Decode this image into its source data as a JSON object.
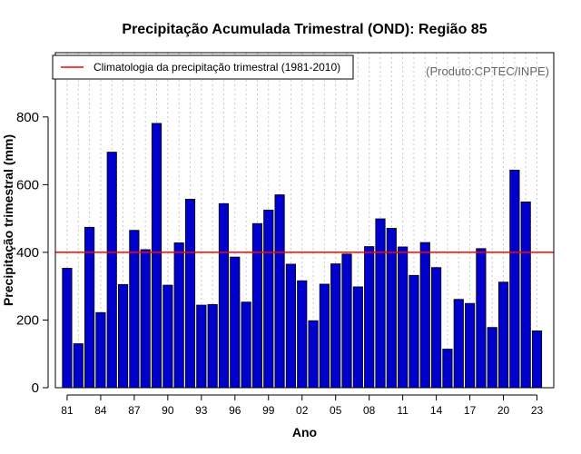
{
  "chart_data": {
    "type": "bar",
    "title": "Precipitação Acumulada Trimestral (OND): Região 85",
    "xlabel": "Ano",
    "ylabel": "Precipitação trimestral (mm)",
    "ylim": [
      0,
      990
    ],
    "yticks": [
      0,
      200,
      400,
      600,
      800
    ],
    "xtick_labels": [
      "81",
      "84",
      "87",
      "90",
      "93",
      "96",
      "99",
      "02",
      "05",
      "08",
      "11",
      "14",
      "17",
      "20",
      "23"
    ],
    "grid": "vertical dotted",
    "years": [
      1981,
      1982,
      1983,
      1984,
      1985,
      1986,
      1987,
      1988,
      1989,
      1990,
      1991,
      1992,
      1993,
      1994,
      1995,
      1996,
      1997,
      1998,
      1999,
      2000,
      2001,
      2002,
      2003,
      2004,
      2005,
      2006,
      2007,
      2008,
      2009,
      2010,
      2011,
      2012,
      2013,
      2014,
      2015,
      2016,
      2017,
      2018,
      2019,
      2020,
      2021,
      2022,
      2023
    ],
    "values": [
      353,
      130,
      474,
      222,
      696,
      305,
      465,
      408,
      781,
      303,
      428,
      557,
      244,
      246,
      544,
      386,
      253,
      485,
      525,
      570,
      365,
      316,
      198,
      306,
      366,
      395,
      298,
      417,
      499,
      471,
      416,
      332,
      429,
      355,
      114,
      261,
      249,
      411,
      178,
      312,
      643,
      549,
      168
    ],
    "bar_color": "#0000cc",
    "bar_edge": "#000000",
    "reference_line": {
      "value": 400,
      "color": "#ff0000",
      "label": "Climatologia da precipitação trimestral (1981-2010)"
    },
    "legend_position": "top-left",
    "credit": "(Produto:CPTEC/INPE)"
  }
}
